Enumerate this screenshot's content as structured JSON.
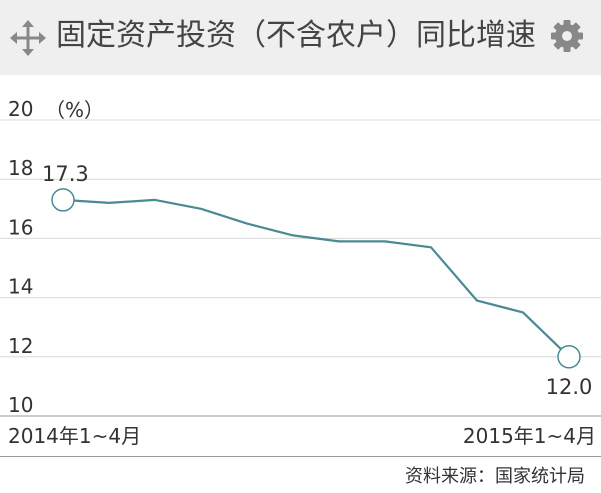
{
  "header": {
    "title": "固定资产投资（不含农户）同比增速",
    "move_icon": "move-arrows-icon",
    "settings_icon": "gear-icon"
  },
  "chart_data": {
    "type": "line",
    "title": "固定资产投资（不含农户）同比增速",
    "ylabel": "（%）",
    "xlabel": "",
    "ylim": [
      10,
      20
    ],
    "yticks": [
      10,
      12,
      14,
      16,
      18,
      20
    ],
    "x_first_label": "2014年1~4月",
    "x_last_label": "2015年1~4月",
    "series": [
      {
        "values": [
          17.3,
          17.2,
          17.3,
          17.0,
          16.5,
          16.1,
          15.9,
          15.9,
          15.7,
          13.9,
          13.5,
          12.0
        ]
      }
    ],
    "start_label": "17.3",
    "end_label": "12.0",
    "line_color": "#4a8a93",
    "grid": true
  },
  "footer": {
    "source": "资料来源：国家统计局"
  }
}
